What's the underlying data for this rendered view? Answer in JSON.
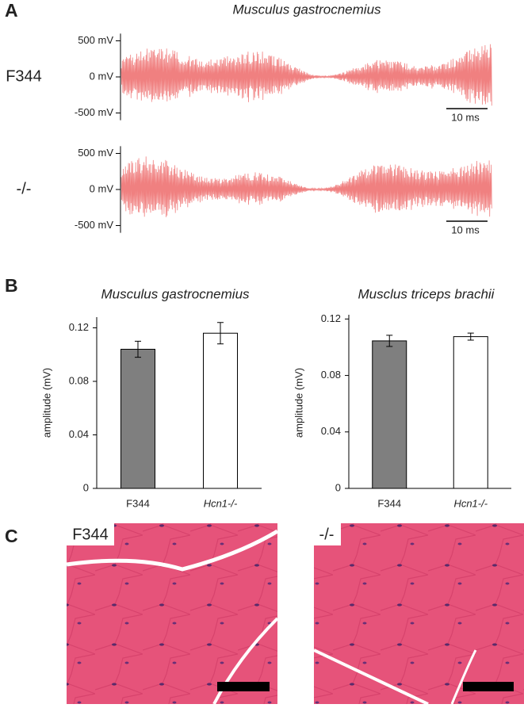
{
  "panel_labels": [
    "A",
    "B",
    "C"
  ],
  "chart_data": [
    {
      "type": "trace",
      "title": "Musculus gastrocnemius",
      "rows": [
        "F344",
        "-/-"
      ],
      "color": "#f08080",
      "ylim": [
        -600,
        600
      ],
      "yticks": [
        {
          "value": 500,
          "label": "500 mV"
        },
        {
          "value": 0,
          "label": "0 mV"
        },
        {
          "value": -500,
          "label": "-500 mV"
        }
      ],
      "scale_bar": "10 ms"
    },
    {
      "type": "bar",
      "title": "Musculus gastrocnemius",
      "ylabel": "amplitude (mV)",
      "categories": [
        "F344",
        "Hcn1-/-"
      ],
      "values": [
        0.104,
        0.116
      ],
      "errors": [
        0.006,
        0.008
      ],
      "colors": [
        "#7f7f7f",
        "#ffffff"
      ],
      "ylim": [
        0,
        0.128
      ],
      "yticks": [
        0,
        0.04,
        0.08,
        0.12
      ]
    },
    {
      "type": "bar",
      "title": "Musclus triceps brachii",
      "ylabel": "amplitude (mV)",
      "categories": [
        "F344",
        "Hcn1-/-"
      ],
      "values": [
        0.1045,
        0.1075
      ],
      "errors": [
        0.004,
        0.0025
      ],
      "colors": [
        "#7f7f7f",
        "#ffffff"
      ],
      "ylim": [
        0,
        0.123
      ],
      "yticks": [
        0,
        0.04,
        0.08,
        0.12
      ]
    }
  ],
  "images": [
    {
      "label": "F344"
    },
    {
      "label": "-/-"
    }
  ]
}
